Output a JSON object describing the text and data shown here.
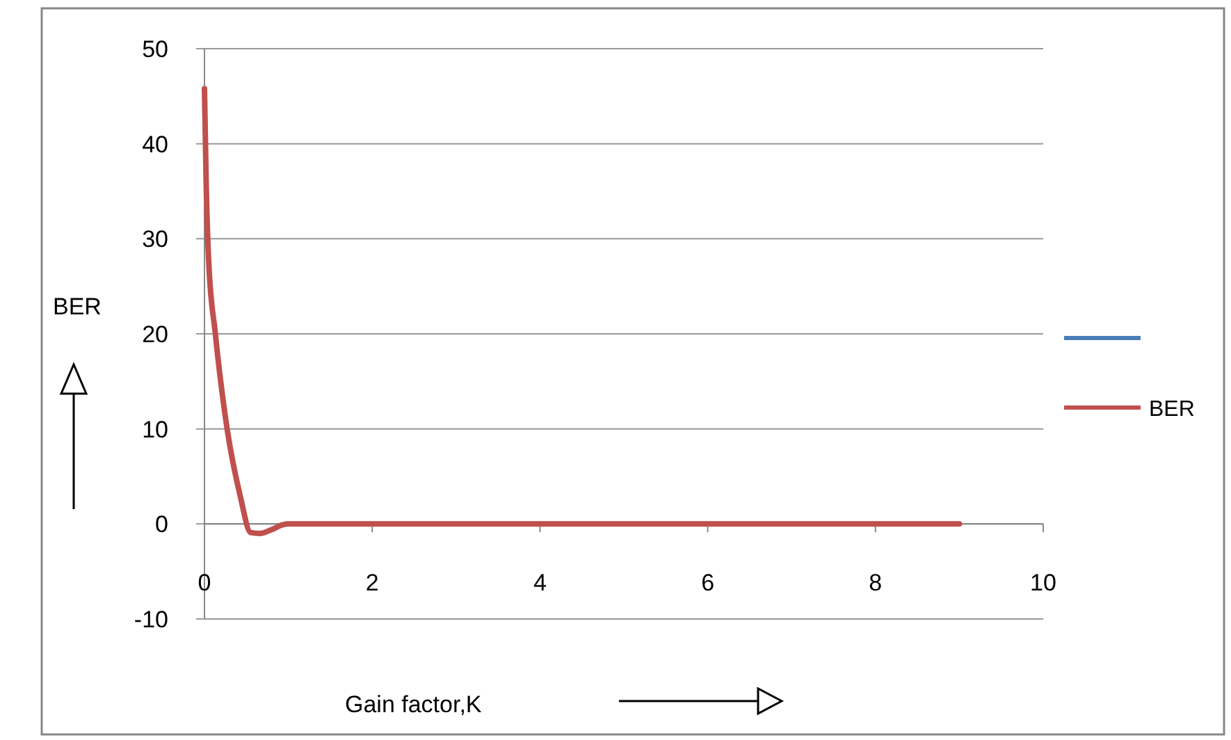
{
  "chart_data": {
    "type": "line",
    "xlabel": "Gain factor,K",
    "ylabel": "BER",
    "xlim": [
      0,
      10
    ],
    "ylim": [
      -10,
      50
    ],
    "xticks": [
      0,
      2,
      4,
      6,
      8,
      10
    ],
    "yticks": [
      -10,
      0,
      10,
      20,
      30,
      40,
      50
    ],
    "grid": "y",
    "legend": "right",
    "marker": "none",
    "line_style": "solid",
    "series": [
      {
        "color": "#4a7ebb"
      },
      {
        "name": "BER",
        "color": "#c0504d",
        "x": [
          0,
          0.02,
          0.05,
          0.13,
          0.27,
          0.43,
          0.55,
          0.66,
          0.8,
          0.93,
          1,
          2,
          3,
          4,
          5,
          6,
          7,
          8,
          9
        ],
        "values": [
          45.8,
          36,
          27.7,
          20,
          10,
          2.8,
          -0.9,
          -1,
          -0.6,
          -0.1,
          0,
          0,
          0,
          0,
          0,
          0,
          0,
          0,
          0
        ]
      }
    ]
  }
}
